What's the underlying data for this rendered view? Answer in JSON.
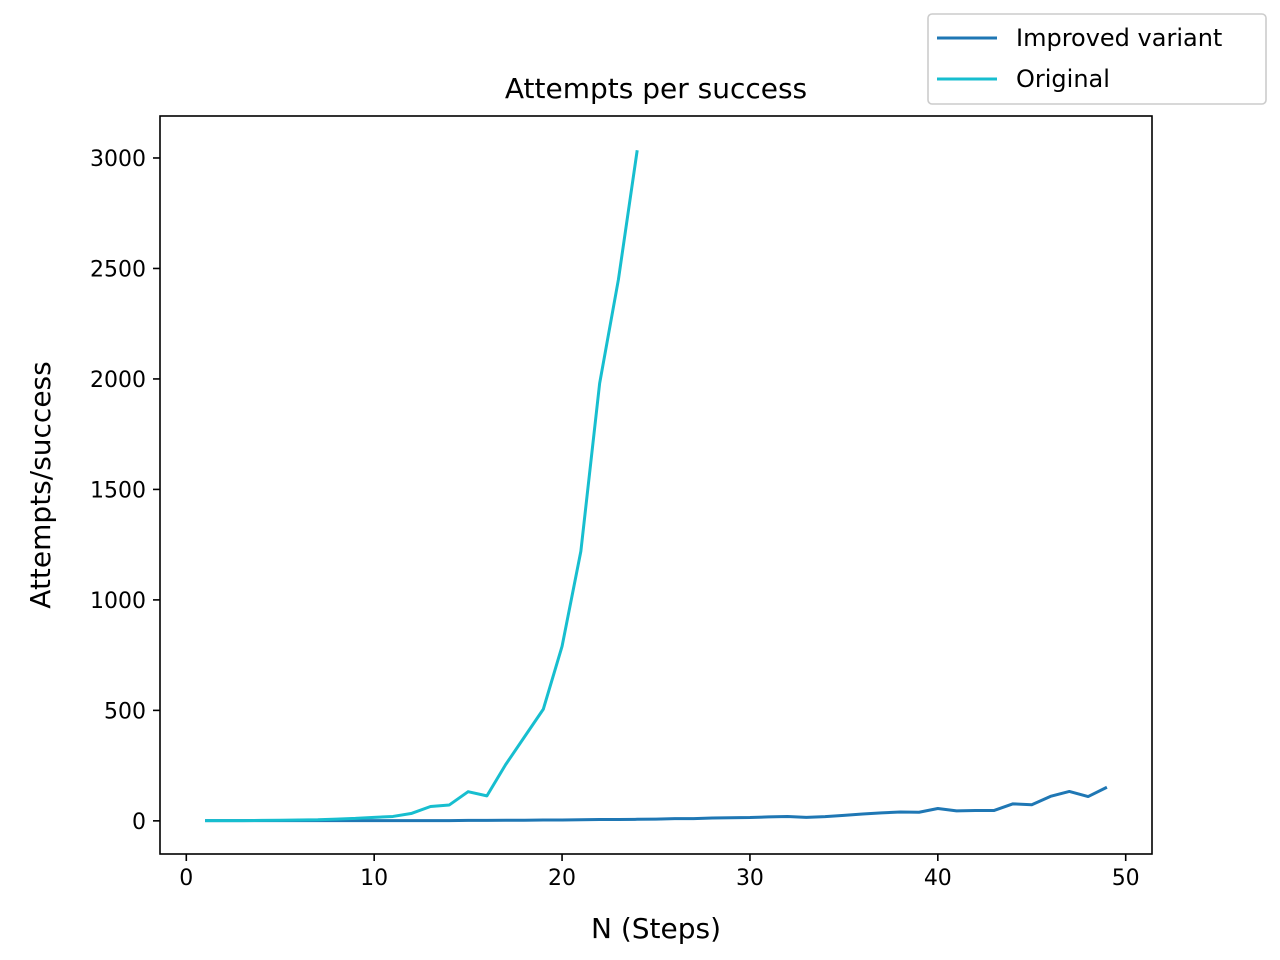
{
  "chart_data": {
    "type": "line",
    "title": "Attempts per success",
    "xlabel": "N (Steps)",
    "ylabel": "Attempts/success",
    "xlim": [
      -1.4,
      51.4
    ],
    "ylim": [
      -150,
      3190
    ],
    "xticks": [
      0,
      10,
      20,
      30,
      40,
      50
    ],
    "yticks": [
      0,
      500,
      1000,
      1500,
      2000,
      2500,
      3000
    ],
    "grid": false,
    "legend_position": "top-right (outside axes)",
    "series": [
      {
        "name": "Improved variant",
        "color": "#1f77b4",
        "x": [
          1,
          2,
          3,
          4,
          5,
          6,
          7,
          8,
          9,
          10,
          11,
          12,
          13,
          14,
          15,
          16,
          17,
          18,
          19,
          20,
          21,
          22,
          23,
          24,
          25,
          26,
          27,
          28,
          29,
          30,
          31,
          32,
          33,
          34,
          35,
          36,
          37,
          38,
          39,
          40,
          41,
          42,
          43,
          44,
          45,
          46,
          47,
          48,
          49
        ],
        "y": [
          1,
          1,
          1,
          1,
          1,
          1,
          1,
          1,
          1,
          1,
          1,
          1,
          1,
          1,
          2,
          2,
          3,
          3,
          4,
          4,
          5,
          6,
          6,
          7,
          8,
          10,
          10,
          13,
          14,
          15,
          18,
          20,
          16,
          19,
          25,
          31,
          36,
          40,
          39,
          56,
          45,
          47,
          47,
          77,
          73,
          111,
          133,
          110,
          152
        ]
      },
      {
        "name": "Original",
        "color": "#17becf",
        "x": [
          1,
          2,
          3,
          4,
          5,
          6,
          7,
          8,
          9,
          10,
          11,
          12,
          13,
          14,
          15,
          16,
          17,
          18,
          19,
          20,
          21,
          22,
          23,
          24
        ],
        "y": [
          1,
          1,
          1,
          2,
          3,
          4,
          5,
          8,
          11,
          16,
          20,
          34,
          65,
          72,
          132,
          113,
          255,
          380,
          505,
          790,
          1220,
          1980,
          2450,
          3035
        ]
      }
    ]
  }
}
